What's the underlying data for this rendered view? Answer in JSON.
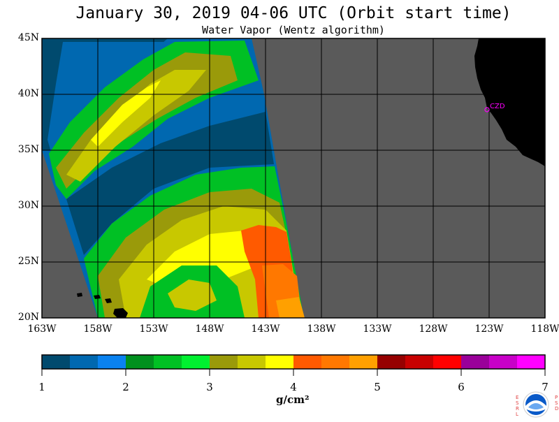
{
  "header": {
    "title": "January 30, 2019  04-06 UTC  (Orbit start time)",
    "subtitle": "Water Vapor (Wentz algorithm)"
  },
  "map": {
    "lat_labels": [
      "45N",
      "40N",
      "35N",
      "30N",
      "25N",
      "20N"
    ],
    "lon_labels": [
      "163W",
      "158W",
      "153W",
      "148W",
      "143W",
      "138W",
      "133W",
      "128W",
      "123W",
      "118W"
    ],
    "lat_range": [
      20,
      45
    ],
    "lon_range": [
      -163,
      -118
    ],
    "city_label": "CZD",
    "colors": {
      "no_data": "#5a5a5a",
      "land": "#000000",
      "grid": "#000000",
      "city": "#ff00ff"
    }
  },
  "colorbar": {
    "tick_labels": [
      "1",
      "2",
      "3",
      "4",
      "5",
      "6",
      "7"
    ],
    "units": "g/cm²",
    "colors": [
      "#004a6e",
      "#0068b0",
      "#0a82f0",
      "#00901e",
      "#00c024",
      "#00f030",
      "#9a9a0a",
      "#c8c800",
      "#ffff00",
      "#ff5a00",
      "#ff7800",
      "#ffa000",
      "#960000",
      "#c80000",
      "#ff0000",
      "#9a009a",
      "#c800c8",
      "#ff00ff"
    ]
  },
  "logo": {
    "text": "NOAA",
    "left_letters": "ESRL",
    "right_letters": "PSD"
  }
}
